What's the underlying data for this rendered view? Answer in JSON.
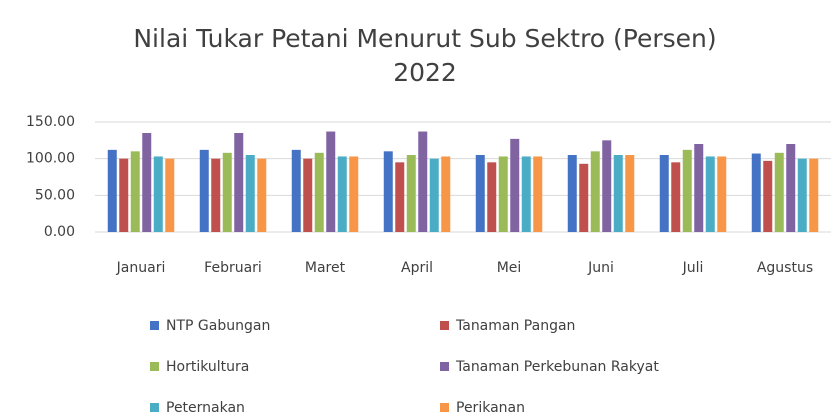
{
  "chart_data": {
    "type": "bar",
    "title": [
      "Nilai Tukar Petani Menurut Sub Sektro (Persen)",
      "2022"
    ],
    "categories": [
      "Januari",
      "Februari",
      "Maret",
      "April",
      "Mei",
      "Juni",
      "Juli",
      "Agustus"
    ],
    "series": [
      {
        "name": "NTP Gabungan",
        "color": "#4472c4",
        "values": [
          112,
          112,
          112,
          110,
          105,
          105,
          105,
          107
        ]
      },
      {
        "name": "Tanaman Pangan",
        "color": "#c0504d",
        "values": [
          100,
          100,
          100,
          95,
          95,
          93,
          95,
          97
        ]
      },
      {
        "name": "Hortikultura",
        "color": "#9bbb59",
        "values": [
          110,
          108,
          108,
          105,
          103,
          110,
          112,
          108
        ]
      },
      {
        "name": "Tanaman Perkebunan Rakyat",
        "color": "#8064a2",
        "values": [
          135,
          135,
          137,
          137,
          127,
          125,
          120,
          120
        ]
      },
      {
        "name": "Peternakan",
        "color": "#4bacc6",
        "values": [
          103,
          105,
          103,
          100,
          103,
          105,
          103,
          100
        ]
      },
      {
        "name": "Perikanan",
        "color": "#f79646",
        "values": [
          100,
          100,
          103,
          103,
          103,
          105,
          103,
          100
        ]
      }
    ],
    "ylim": [
      0,
      150
    ],
    "yticks": [
      {
        "value": 0,
        "label": "0.00"
      },
      {
        "value": 50,
        "label": "50.00"
      },
      {
        "value": 100,
        "label": "100.00"
      },
      {
        "value": 150,
        "label": "150.00"
      }
    ],
    "grid": true,
    "legend": "bottom"
  }
}
